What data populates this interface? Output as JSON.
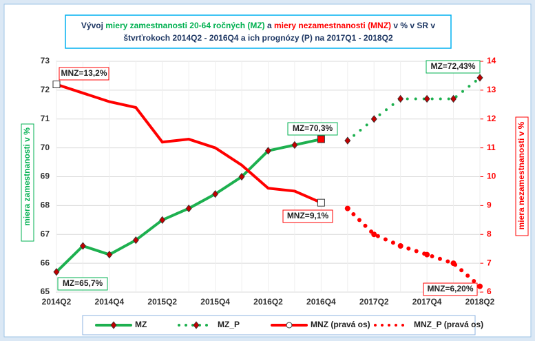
{
  "chart_data": {
    "type": "line",
    "title_lines": [
      [
        {
          "text": "Vývoj ",
          "color": "#1f3864"
        },
        {
          "text": "miery zamestnanosti 20-64 ročných (MZ)",
          "color": "#00b050"
        },
        {
          "text": " a ",
          "color": "#1f3864"
        },
        {
          "text": "miery nezamestnanosti (MNZ)",
          "color": "#ff0000"
        },
        {
          "text": " v % v SR v",
          "color": "#1f3864"
        }
      ],
      [
        {
          "text": "štvrťrokoch 2014Q2 - 2016Q4 a ich prognózy (P) na 2017Q1 - 2018Q2",
          "color": "#1f3864"
        }
      ]
    ],
    "ylabel": "miera zamestnanosti v %",
    "y2label": "miera nezamestnanosti v %",
    "categories": [
      "2014Q2",
      null,
      "2014Q4",
      null,
      "2015Q2",
      null,
      "2015Q4",
      null,
      "2016Q2",
      null,
      "2016Q4",
      null,
      "2017Q2",
      null,
      "2017Q4",
      null,
      "2018Q2"
    ],
    "ylim": [
      65,
      73
    ],
    "yticks": [
      65,
      66,
      67,
      68,
      69,
      70,
      71,
      72,
      73
    ],
    "y2lim": [
      6,
      14
    ],
    "y2ticks": [
      6,
      7,
      8,
      9,
      10,
      11,
      12,
      13,
      14
    ],
    "grid": true,
    "series": [
      {
        "name": "MZ",
        "color": "#1db04f",
        "style": "solid",
        "values": [
          65.7,
          66.6,
          66.3,
          66.8,
          67.5,
          67.9,
          68.4,
          69.0,
          69.9,
          70.1,
          70.3,
          null,
          null,
          null,
          null,
          null,
          null
        ]
      },
      {
        "name": "MZ_P",
        "color": "#1db04f",
        "style": "dotted",
        "values": [
          null,
          null,
          null,
          null,
          null,
          null,
          null,
          null,
          null,
          null,
          null,
          70.25,
          71.0,
          71.7,
          71.7,
          71.7,
          72.43
        ]
      },
      {
        "name": "MNZ (pravá os)",
        "color": "#ff0000",
        "style": "solid",
        "axis": "y2",
        "values": [
          13.2,
          12.9,
          12.6,
          12.4,
          11.2,
          11.3,
          11.0,
          10.4,
          9.6,
          9.5,
          9.1,
          null,
          null,
          null,
          null,
          null,
          null
        ]
      },
      {
        "name": "MNZ_P (pravá os)",
        "color": "#ff0000",
        "style": "dotted",
        "axis": "y2",
        "values": [
          null,
          null,
          null,
          null,
          null,
          null,
          null,
          null,
          null,
          null,
          null,
          8.9,
          8.0,
          7.6,
          7.3,
          7.0,
          6.2
        ]
      }
    ],
    "annotations": [
      "MNZ=13,2%",
      "MZ=70,3%",
      "MNZ=9,1%",
      "MZ=72,43%",
      "MZ=65,7%",
      "MNZ=6,20%"
    ]
  }
}
